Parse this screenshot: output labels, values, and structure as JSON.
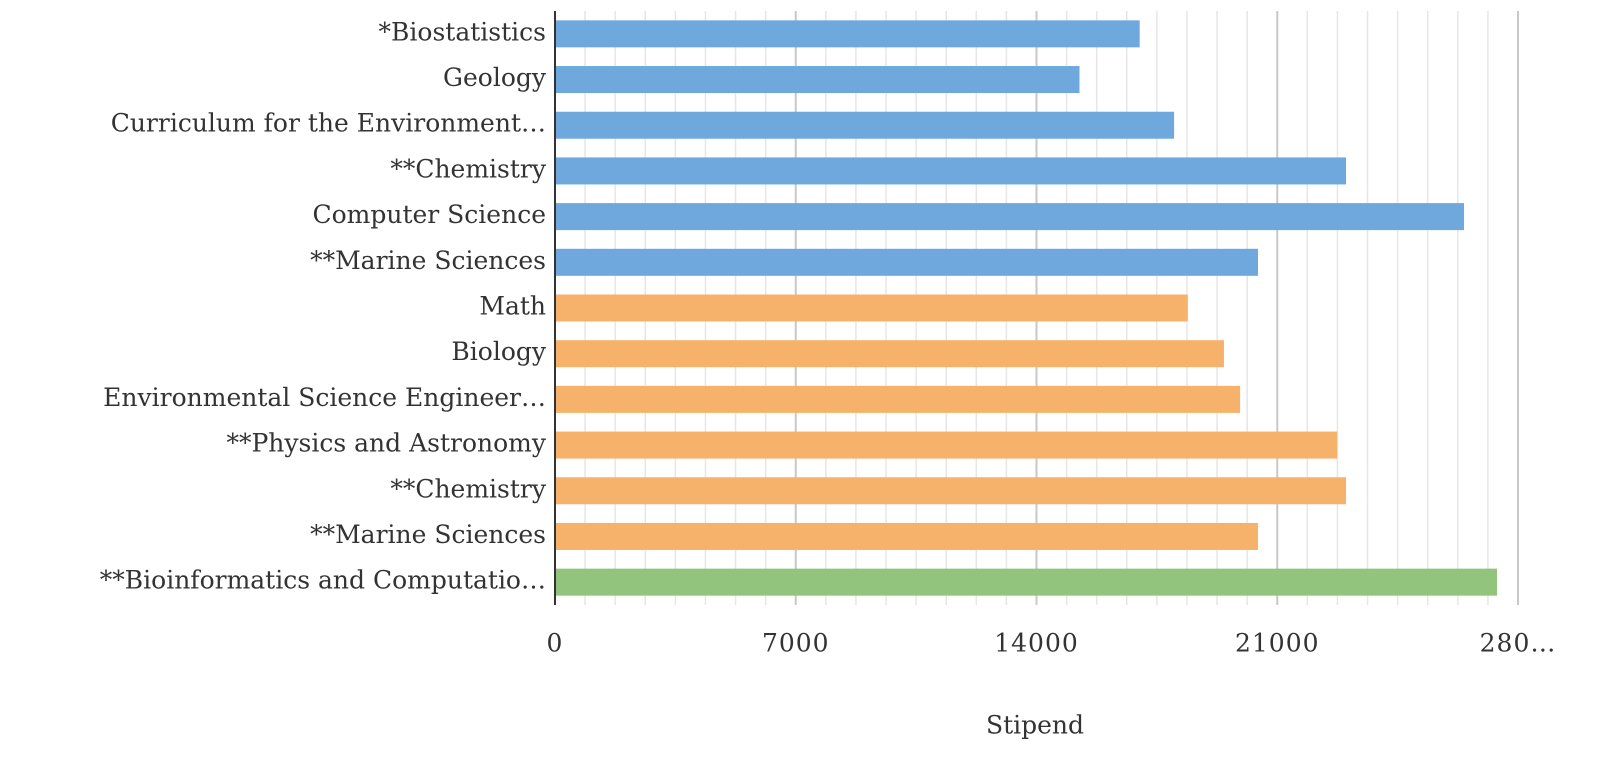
{
  "chart_data": {
    "type": "hbar",
    "categories": [
      "*Biostatistics",
      "Geology",
      "Curriculum for the Environment…",
      "**Chemistry",
      "Computer Science",
      "**Marine Sciences",
      "Math",
      "Biology",
      "Environmental Science Engineer…",
      "**Physics and Astronomy",
      "**Chemistry",
      "**Marine Sciences",
      "**Bioinformatics and Computatio…"
    ],
    "values": [
      17000,
      15250,
      18000,
      23000,
      26430,
      20440,
      18400,
      19450,
      19920,
      22740,
      23000,
      20440,
      27390
    ],
    "colors": [
      "#6fa8dc",
      "#6fa8dc",
      "#6fa8dc",
      "#6fa8dc",
      "#6fa8dc",
      "#6fa8dc",
      "#f6b26b",
      "#f6b26b",
      "#f6b26b",
      "#f6b26b",
      "#f6b26b",
      "#f6b26b",
      "#93c47d"
    ],
    "xlabel": "Stipend",
    "xlim": [
      0,
      28000
    ],
    "xticks": [
      0,
      7000,
      14000,
      21000,
      {
        "value": 28000,
        "label": "280…"
      }
    ],
    "grid": true,
    "minor_divisions": 8
  }
}
